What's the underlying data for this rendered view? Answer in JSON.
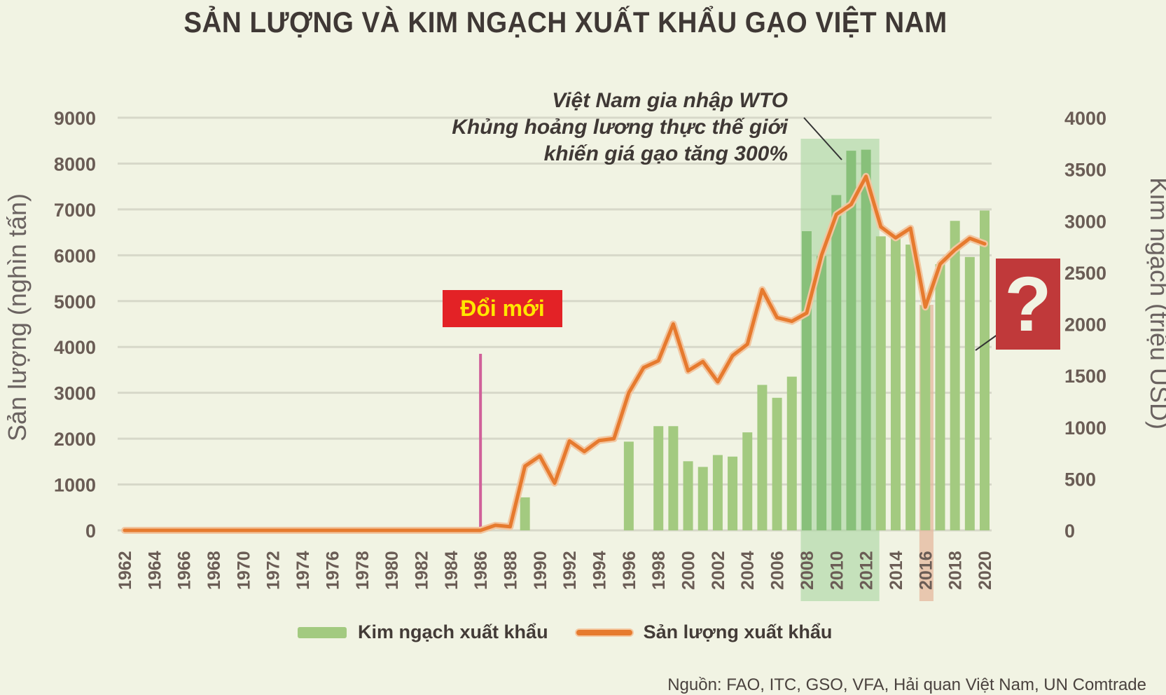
{
  "title": "SẢN LƯỢNG VÀ KIM NGẠCH XUẤT KHẨU GẠO VIỆT NAM",
  "annotations": {
    "wto": [
      "Việt Nam gia nhập WTO",
      "Khủng hoảng lương thực thế giới",
      "khiến giá gạo tăng 300%"
    ],
    "doi_moi": "Đổi mới",
    "question": "?"
  },
  "legend": {
    "bar_label": "Kim ngạch xuất khẩu",
    "line_label": "Sản lượng xuất khẩu"
  },
  "source": "Nguồn: FAO, ITC, GSO, VFA, Hải quan Việt Nam, UN Comtrade",
  "colors": {
    "bar": "#a3ca80",
    "bar_highlight": "#88c07a",
    "line": "#e67a2e",
    "wto_band": "#a9d6a0",
    "band_2016": "#e4b89e",
    "doi_moi_marker": "#d0609a",
    "doi_moi_bg": "#e32226",
    "doi_moi_text": "#ffe600",
    "question_bg": "#c0393a"
  },
  "chart_data": {
    "type": "bar+line",
    "title": "SẢN LƯỢNG VÀ KIM NGẠCH XUẤT KHẨU GẠO VIỆT NAM",
    "xlabel": "",
    "ylabel_left": "Sản lượng (nghìn tấn)",
    "ylabel_right": "Kim ngạch (triệu USD)",
    "ylim_left": [
      0,
      9000
    ],
    "ylim_right": [
      0,
      4000
    ],
    "yticks_left": [
      0,
      1000,
      2000,
      3000,
      4000,
      5000,
      6000,
      7000,
      8000,
      9000
    ],
    "yticks_right": [
      0,
      500,
      1000,
      1500,
      2000,
      2500,
      3000,
      3500,
      4000
    ],
    "xticks": [
      1962,
      1964,
      1966,
      1968,
      1970,
      1972,
      1974,
      1976,
      1978,
      1980,
      1982,
      1984,
      1986,
      1988,
      1990,
      1992,
      1994,
      1996,
      1998,
      2000,
      2002,
      2004,
      2006,
      2008,
      2010,
      2012,
      2014,
      2016,
      2018,
      2020
    ],
    "grid": true,
    "legend_position": "bottom",
    "series": [
      {
        "name": "Kim ngạch xuất khẩu",
        "type": "bar",
        "axis": "right",
        "x": [
          1989,
          1996,
          1998,
          1999,
          2000,
          2001,
          2002,
          2003,
          2004,
          2005,
          2006,
          2007,
          2008,
          2009,
          2010,
          2011,
          2012,
          2013,
          2014,
          2015,
          2016,
          2017,
          2018,
          2019,
          2020
        ],
        "values": [
          320,
          860,
          1010,
          1010,
          670,
          615,
          730,
          715,
          950,
          1410,
          1285,
          1490,
          2900,
          2660,
          3250,
          3680,
          3690,
          2850,
          2875,
          2770,
          2180,
          2580,
          3000,
          2650,
          3100
        ]
      },
      {
        "name": "Sản lượng xuất khẩu",
        "type": "line",
        "axis": "left",
        "x": [
          1962,
          1963,
          1964,
          1965,
          1966,
          1967,
          1968,
          1969,
          1970,
          1971,
          1972,
          1973,
          1974,
          1975,
          1976,
          1977,
          1978,
          1979,
          1980,
          1981,
          1982,
          1983,
          1984,
          1985,
          1986,
          1987,
          1988,
          1989,
          1990,
          1991,
          1992,
          1993,
          1994,
          1995,
          1996,
          1997,
          1998,
          1999,
          2000,
          2001,
          2002,
          2003,
          2004,
          2005,
          2006,
          2007,
          2008,
          2009,
          2010,
          2011,
          2012,
          2013,
          2014,
          2015,
          2016,
          2017,
          2018,
          2019,
          2020
        ],
        "values": [
          0,
          0,
          0,
          0,
          0,
          0,
          0,
          0,
          0,
          0,
          0,
          0,
          0,
          0,
          0,
          0,
          0,
          0,
          0,
          0,
          0,
          0,
          0,
          0,
          0,
          110,
          80,
          1400,
          1620,
          1030,
          1950,
          1720,
          1960,
          2000,
          3000,
          3550,
          3700,
          4500,
          3480,
          3680,
          3240,
          3810,
          4060,
          5250,
          4640,
          4560,
          4740,
          6000,
          6890,
          7110,
          7720,
          6620,
          6380,
          6590,
          4870,
          5810,
          6120,
          6370,
          6250
        ]
      }
    ],
    "highlights": [
      {
        "type": "band",
        "from": 2008,
        "to": 2012,
        "label": "Việt Nam gia nhập WTO / Khủng hoảng lương thực thế giới khiến giá gạo tăng 300%"
      },
      {
        "type": "band",
        "from": 2016,
        "to": 2016,
        "label": "?"
      },
      {
        "type": "marker",
        "x": 1986,
        "label": "Đổi mới"
      }
    ]
  }
}
